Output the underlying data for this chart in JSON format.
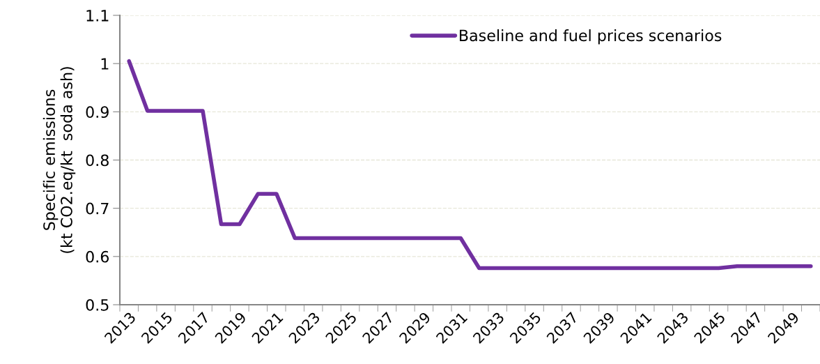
{
  "chart_data": {
    "type": "line",
    "ylabel": "Specific emissions\n(kt CO2.eq/kt  soda ash)",
    "categories": [
      "2013",
      null,
      "2015",
      null,
      "2017",
      null,
      "2019",
      null,
      "2021",
      null,
      "2023",
      null,
      "2025",
      null,
      "2027",
      null,
      "2029",
      null,
      "2031",
      null,
      "2033",
      null,
      "2035",
      null,
      "2037",
      null,
      "2039",
      null,
      "2041",
      null,
      "2043",
      null,
      "2045",
      null,
      "2047",
      null,
      "2049",
      null
    ],
    "series": [
      {
        "name": "Baseline and fuel prices scenarios",
        "color": "#7030a0",
        "values": [
          1.005,
          0.902,
          0.902,
          0.902,
          0.902,
          0.667,
          0.667,
          0.73,
          0.73,
          0.638,
          0.638,
          0.638,
          0.638,
          0.638,
          0.638,
          0.638,
          0.638,
          0.638,
          0.638,
          0.576,
          0.576,
          0.576,
          0.576,
          0.576,
          0.576,
          0.576,
          0.576,
          0.576,
          0.576,
          0.576,
          0.576,
          0.576,
          0.576,
          0.58,
          0.58,
          0.58,
          0.58,
          0.58
        ]
      }
    ],
    "ylim": [
      0.5,
      1.1
    ],
    "yticks": [
      0.5,
      0.6,
      0.7,
      0.8,
      0.9,
      1,
      1.1
    ],
    "grid": "y",
    "legend": "top right",
    "marker": "none",
    "line_style": "solid"
  }
}
